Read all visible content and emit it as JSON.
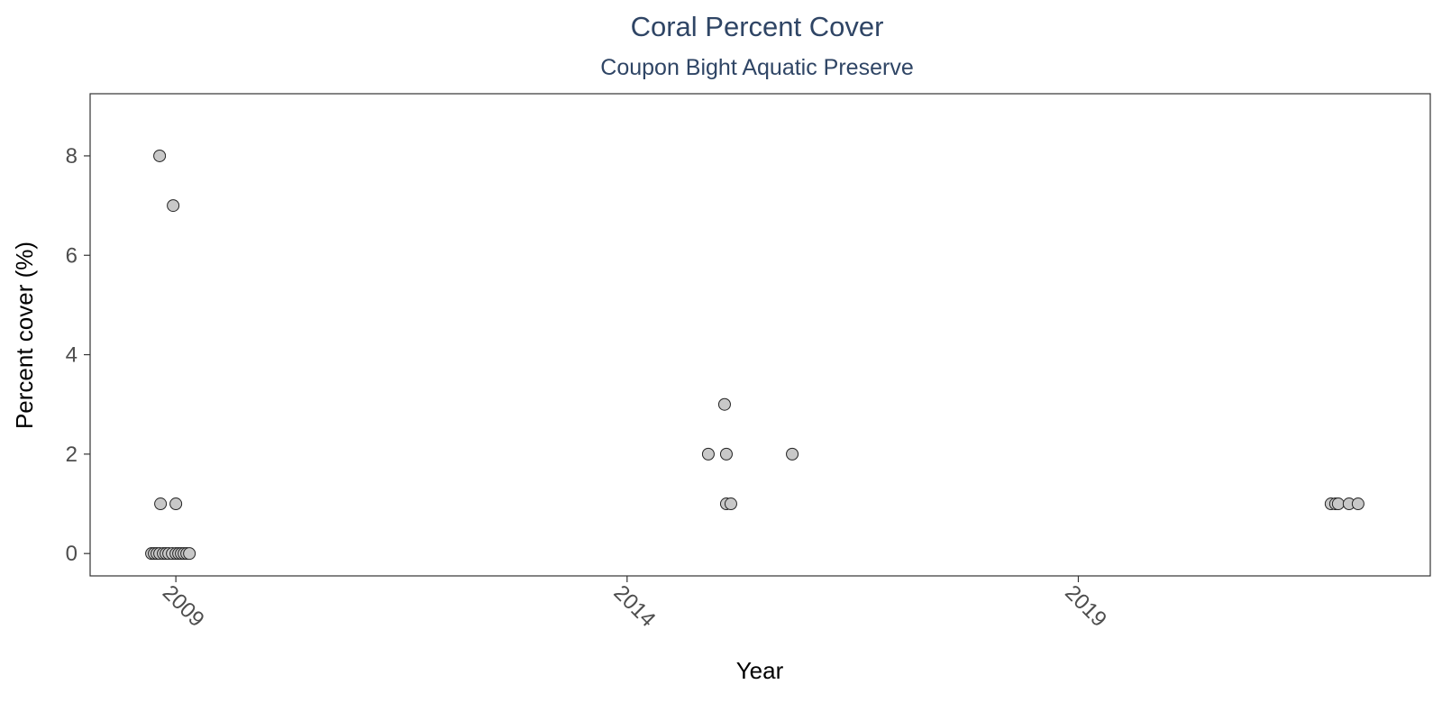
{
  "chart_data": {
    "type": "scatter",
    "title": "Coral Percent Cover",
    "subtitle": "Coupon Bight Aquatic Preserve",
    "xlabel": "Year",
    "ylabel": "Percent cover (%)",
    "x_ticks": [
      2009,
      2014,
      2019
    ],
    "y_ticks": [
      0,
      2,
      4,
      6,
      8
    ],
    "xlim": [
      2008.05,
      2022.9
    ],
    "ylim": [
      -0.45,
      9.25
    ],
    "grid": false,
    "legend": "none",
    "colors": {
      "point_fill": "#c8c8c8",
      "point_stroke": "#222222",
      "title": "#2f4565"
    },
    "series": [
      {
        "points": [
          {
            "x": 2008.82,
            "y": 8
          },
          {
            "x": 2008.97,
            "y": 7
          },
          {
            "x": 2008.83,
            "y": 1
          },
          {
            "x": 2009.0,
            "y": 1
          },
          {
            "x": 2008.73,
            "y": 0
          },
          {
            "x": 2008.76,
            "y": 0
          },
          {
            "x": 2008.79,
            "y": 0
          },
          {
            "x": 2008.82,
            "y": 0
          },
          {
            "x": 2008.86,
            "y": 0
          },
          {
            "x": 2008.89,
            "y": 0
          },
          {
            "x": 2008.92,
            "y": 0
          },
          {
            "x": 2008.96,
            "y": 0
          },
          {
            "x": 2009.0,
            "y": 0
          },
          {
            "x": 2009.03,
            "y": 0
          },
          {
            "x": 2009.06,
            "y": 0
          },
          {
            "x": 2009.09,
            "y": 0
          },
          {
            "x": 2009.12,
            "y": 0
          },
          {
            "x": 2009.15,
            "y": 0
          },
          {
            "x": 2014.9,
            "y": 2
          },
          {
            "x": 2015.08,
            "y": 3
          },
          {
            "x": 2015.1,
            "y": 2
          },
          {
            "x": 2015.1,
            "y": 1
          },
          {
            "x": 2015.15,
            "y": 1
          },
          {
            "x": 2015.83,
            "y": 2
          },
          {
            "x": 2021.8,
            "y": 1
          },
          {
            "x": 2021.85,
            "y": 1
          },
          {
            "x": 2021.88,
            "y": 1
          },
          {
            "x": 2022.0,
            "y": 1
          },
          {
            "x": 2022.1,
            "y": 1
          }
        ]
      }
    ]
  }
}
